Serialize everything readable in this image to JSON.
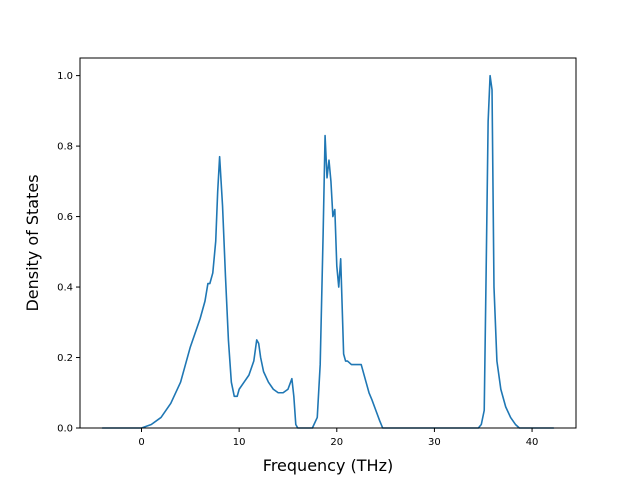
{
  "chart_data": {
    "type": "line",
    "title": "",
    "xlabel": "Frequency (THz)",
    "ylabel": "Density of States",
    "xlim": [
      -6.3,
      44.5
    ],
    "ylim": [
      0.0,
      1.05
    ],
    "xticks": [
      0,
      10,
      20,
      30,
      40
    ],
    "yticks": [
      0.0,
      0.2,
      0.4,
      0.6,
      0.8,
      1.0
    ],
    "xtick_labels": [
      "0",
      "10",
      "20",
      "30",
      "40"
    ],
    "ytick_labels": [
      "0.0",
      "0.2",
      "0.4",
      "0.6",
      "0.8",
      "1.0"
    ],
    "grid": false,
    "legend": "none",
    "series": [
      {
        "color": "#1f77b4",
        "x": [
          -4.0,
          0.0,
          1.0,
          2.0,
          3.0,
          4.0,
          4.5,
          5.0,
          5.5,
          6.0,
          6.5,
          6.8,
          7.0,
          7.3,
          7.6,
          7.8,
          8.0,
          8.3,
          8.6,
          8.9,
          9.2,
          9.5,
          9.8,
          10.0,
          10.5,
          11.0,
          11.5,
          11.8,
          12.0,
          12.2,
          12.5,
          13.0,
          13.5,
          14.0,
          14.5,
          15.0,
          15.4,
          15.6,
          15.8,
          16.0,
          16.5,
          17.0,
          17.5,
          18.0,
          18.3,
          18.6,
          18.8,
          19.0,
          19.2,
          19.4,
          19.6,
          19.8,
          20.0,
          20.2,
          20.4,
          20.6,
          20.7,
          20.9,
          21.1,
          21.5,
          22.0,
          22.5,
          23.0,
          23.3,
          23.6,
          24.0,
          24.4,
          24.7,
          25.0,
          30.0,
          34.5,
          34.8,
          35.1,
          35.3,
          35.5,
          35.7,
          35.9,
          36.1,
          36.4,
          36.8,
          37.3,
          37.8,
          38.3,
          38.7,
          39.0,
          42.2
        ],
        "y": [
          0.0,
          0.0,
          0.01,
          0.03,
          0.07,
          0.13,
          0.18,
          0.23,
          0.27,
          0.31,
          0.36,
          0.41,
          0.41,
          0.44,
          0.53,
          0.67,
          0.77,
          0.63,
          0.43,
          0.25,
          0.13,
          0.09,
          0.09,
          0.11,
          0.13,
          0.15,
          0.19,
          0.25,
          0.24,
          0.2,
          0.16,
          0.13,
          0.11,
          0.1,
          0.1,
          0.11,
          0.14,
          0.09,
          0.01,
          0.0,
          0.0,
          0.0,
          0.0,
          0.03,
          0.18,
          0.55,
          0.83,
          0.71,
          0.76,
          0.7,
          0.6,
          0.62,
          0.46,
          0.4,
          0.48,
          0.3,
          0.21,
          0.19,
          0.19,
          0.18,
          0.18,
          0.18,
          0.13,
          0.1,
          0.08,
          0.05,
          0.02,
          0.0,
          0.0,
          0.0,
          0.0,
          0.01,
          0.05,
          0.45,
          0.87,
          1.0,
          0.96,
          0.4,
          0.19,
          0.11,
          0.06,
          0.03,
          0.01,
          0.0,
          0.0,
          0.0
        ]
      }
    ]
  }
}
